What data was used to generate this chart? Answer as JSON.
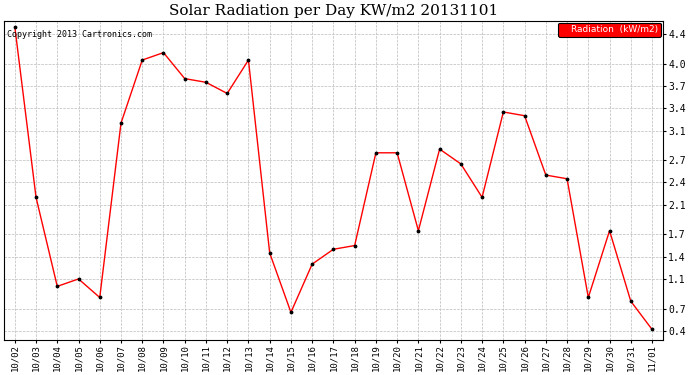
{
  "title": "Solar Radiation per Day KW/m2 20131101",
  "copyright": "Copyright 2013 Cartronics.com",
  "legend_label": "Radiation  (kW/m2)",
  "x_labels": [
    "10/02",
    "10/03",
    "10/04",
    "10/05",
    "10/06",
    "10/07",
    "10/08",
    "10/09",
    "10/10",
    "10/11",
    "10/12",
    "10/13",
    "10/14",
    "10/15",
    "10/16",
    "10/17",
    "10/18",
    "10/19",
    "10/20",
    "10/21",
    "10/22",
    "10/23",
    "10/24",
    "10/25",
    "10/26",
    "10/27",
    "10/28",
    "10/29",
    "10/30",
    "10/31",
    "11/01"
  ],
  "y_values": [
    4.5,
    2.2,
    1.0,
    1.1,
    0.85,
    3.2,
    4.05,
    4.15,
    3.8,
    3.75,
    3.6,
    4.05,
    1.45,
    0.65,
    1.3,
    1.5,
    1.55,
    2.8,
    2.8,
    1.75,
    2.85,
    2.65,
    2.2,
    3.35,
    3.3,
    2.5,
    2.45,
    0.85,
    1.75,
    0.8,
    0.42
  ],
  "line_color": "red",
  "marker_color": "black",
  "marker_style": ".",
  "bg_color": "white",
  "grid_color": "#bbbbbb",
  "y_ticks": [
    0.4,
    0.7,
    1.1,
    1.4,
    1.7,
    2.1,
    2.4,
    2.7,
    3.1,
    3.4,
    3.7,
    4.0,
    4.4
  ],
  "y_min": 0.28,
  "y_max": 4.58,
  "legend_bg": "red",
  "legend_text_color": "white",
  "title_fontsize": 11,
  "copyright_fontsize": 6,
  "tick_fontsize": 6.5,
  "y_tick_fontsize": 7
}
